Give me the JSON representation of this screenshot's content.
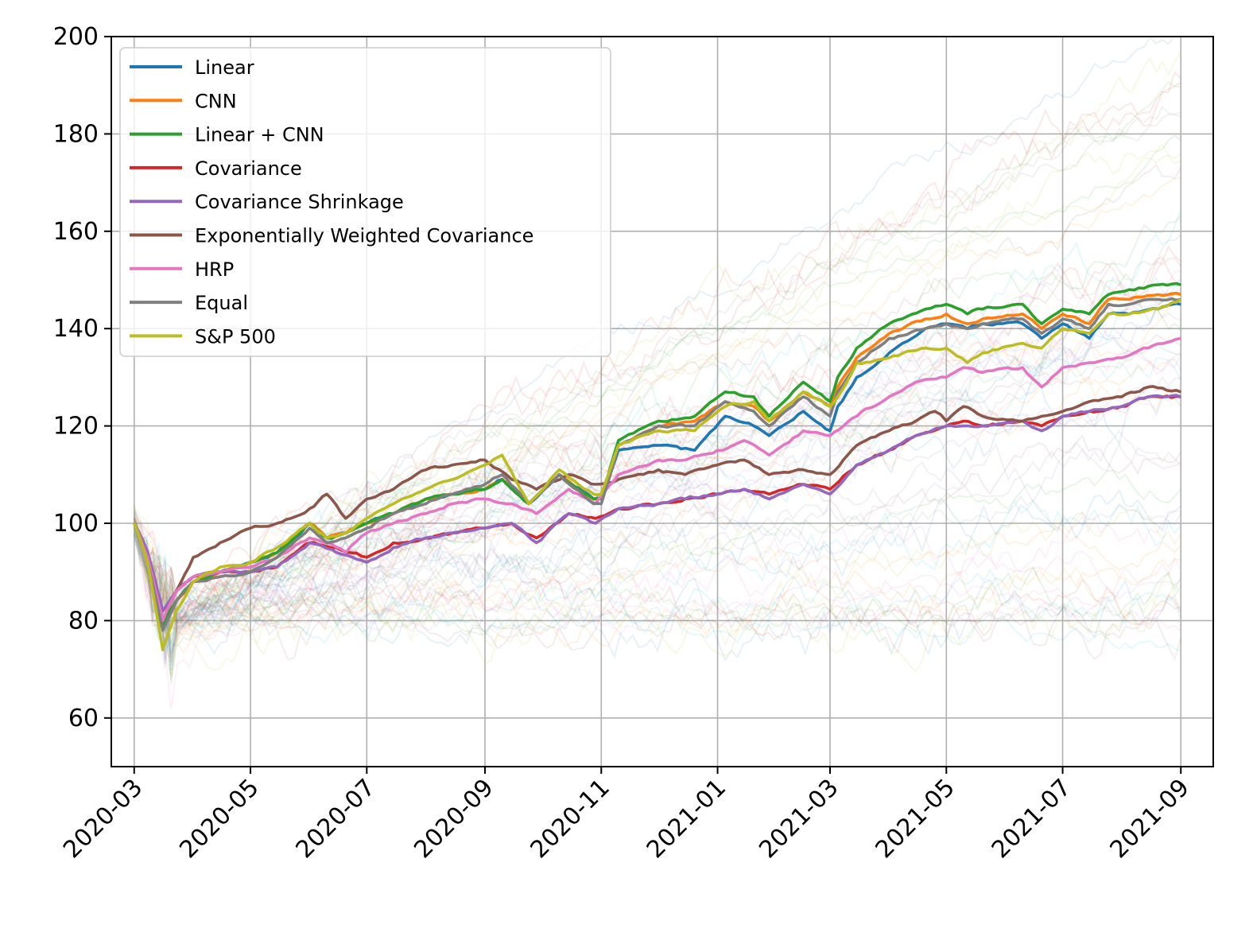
{
  "chart_data": {
    "type": "line",
    "title": "",
    "xlabel": "",
    "ylabel": "",
    "x_range": [
      "2020-02-18",
      "2021-09-18"
    ],
    "ylim": [
      50,
      200
    ],
    "grid": true,
    "legend_placement": "top-left",
    "x_ticks": [
      {
        "date": "2020-03-01",
        "label": "2020-03"
      },
      {
        "date": "2020-05-01",
        "label": "2020-05"
      },
      {
        "date": "2020-07-01",
        "label": "2020-07"
      },
      {
        "date": "2020-09-01",
        "label": "2020-09"
      },
      {
        "date": "2020-11-01",
        "label": "2020-11"
      },
      {
        "date": "2021-01-01",
        "label": "2021-01"
      },
      {
        "date": "2021-03-01",
        "label": "2021-03"
      },
      {
        "date": "2021-05-01",
        "label": "2021-05"
      },
      {
        "date": "2021-07-01",
        "label": "2021-07"
      },
      {
        "date": "2021-09-01",
        "label": "2021-09"
      }
    ],
    "y_ticks": [
      {
        "value": 60,
        "label": "60"
      },
      {
        "value": 80,
        "label": "80"
      },
      {
        "value": 100,
        "label": "100"
      },
      {
        "value": 120,
        "label": "120"
      },
      {
        "value": 140,
        "label": "140"
      },
      {
        "value": 160,
        "label": "160"
      },
      {
        "value": 180,
        "label": "180"
      },
      {
        "value": 200,
        "label": "200"
      }
    ],
    "series": [
      {
        "name": "Linear",
        "color": "#1f77b4",
        "x": [
          "2020-03-01",
          "2020-03-08",
          "2020-03-16",
          "2020-03-23",
          "2020-04-01",
          "2020-04-15",
          "2020-05-01",
          "2020-05-15",
          "2020-06-01",
          "2020-06-10",
          "2020-06-20",
          "2020-07-01",
          "2020-07-15",
          "2020-08-01",
          "2020-08-15",
          "2020-09-01",
          "2020-09-10",
          "2020-09-24",
          "2020-10-10",
          "2020-10-28",
          "2020-11-01",
          "2020-11-10",
          "2020-12-01",
          "2020-12-20",
          "2021-01-05",
          "2021-01-20",
          "2021-01-28",
          "2021-02-15",
          "2021-03-01",
          "2021-03-05",
          "2021-03-15",
          "2021-04-01",
          "2021-04-20",
          "2021-05-01",
          "2021-05-12",
          "2021-05-20",
          "2021-06-10",
          "2021-06-20",
          "2021-07-01",
          "2021-07-15",
          "2021-07-25",
          "2021-08-05",
          "2021-08-20",
          "2021-09-01"
        ],
        "values": [
          100,
          92,
          79,
          84,
          88,
          90,
          92,
          94,
          100,
          97,
          98,
          100,
          102,
          105,
          106,
          107,
          109,
          104,
          110,
          105,
          105,
          115,
          116,
          115,
          122,
          120,
          118,
          123,
          119,
          124,
          130,
          135,
          140,
          141,
          140,
          141,
          141,
          138,
          141,
          138,
          143,
          143,
          144,
          145
        ]
      },
      {
        "name": "CNN",
        "color": "#ff7f0e",
        "x": [
          "2020-03-01",
          "2020-03-08",
          "2020-03-16",
          "2020-03-23",
          "2020-04-01",
          "2020-04-15",
          "2020-05-01",
          "2020-05-15",
          "2020-06-01",
          "2020-06-10",
          "2020-06-20",
          "2020-07-01",
          "2020-07-15",
          "2020-08-01",
          "2020-08-15",
          "2020-09-01",
          "2020-09-10",
          "2020-09-24",
          "2020-10-10",
          "2020-10-28",
          "2020-11-01",
          "2020-11-10",
          "2020-12-01",
          "2020-12-20",
          "2021-01-05",
          "2021-01-20",
          "2021-01-28",
          "2021-02-15",
          "2021-03-01",
          "2021-03-05",
          "2021-03-15",
          "2021-04-01",
          "2021-04-20",
          "2021-05-01",
          "2021-05-12",
          "2021-05-20",
          "2021-06-10",
          "2021-06-20",
          "2021-07-01",
          "2021-07-15",
          "2021-07-25",
          "2021-08-05",
          "2021-08-20",
          "2021-09-01"
        ],
        "values": [
          100,
          92,
          79,
          84,
          88,
          90,
          92,
          94,
          100,
          97,
          98,
          100,
          102,
          105,
          106,
          107,
          109,
          104,
          110,
          105,
          105,
          116,
          120,
          121,
          125,
          124,
          121,
          127,
          124,
          128,
          134,
          139,
          142,
          143,
          141,
          142,
          143,
          140,
          143,
          141,
          146,
          146,
          147,
          147
        ]
      },
      {
        "name": "Linear + CNN",
        "color": "#2ca02c",
        "x": [
          "2020-03-01",
          "2020-03-08",
          "2020-03-16",
          "2020-03-23",
          "2020-04-01",
          "2020-04-15",
          "2020-05-01",
          "2020-05-15",
          "2020-06-01",
          "2020-06-10",
          "2020-06-20",
          "2020-07-01",
          "2020-07-15",
          "2020-08-01",
          "2020-08-15",
          "2020-09-01",
          "2020-09-10",
          "2020-09-24",
          "2020-10-10",
          "2020-10-28",
          "2020-11-01",
          "2020-11-10",
          "2020-12-01",
          "2020-12-20",
          "2021-01-05",
          "2021-01-20",
          "2021-01-28",
          "2021-02-15",
          "2021-03-01",
          "2021-03-05",
          "2021-03-15",
          "2021-04-01",
          "2021-04-20",
          "2021-05-01",
          "2021-05-12",
          "2021-05-20",
          "2021-06-10",
          "2021-06-20",
          "2021-07-01",
          "2021-07-15",
          "2021-07-25",
          "2021-08-05",
          "2021-08-20",
          "2021-09-01"
        ],
        "values": [
          100,
          92,
          79,
          84,
          88,
          90,
          92,
          94,
          100,
          97,
          98,
          100,
          102,
          105,
          106,
          107,
          109,
          104,
          110,
          105,
          105,
          117,
          121,
          122,
          127,
          126,
          122,
          129,
          125,
          130,
          136,
          141,
          144,
          145,
          143,
          144,
          145,
          141,
          144,
          143,
          147,
          148,
          149,
          149
        ]
      },
      {
        "name": "Covariance",
        "color": "#d62728",
        "x": [
          "2020-03-01",
          "2020-03-08",
          "2020-03-16",
          "2020-03-23",
          "2020-04-01",
          "2020-04-15",
          "2020-05-01",
          "2020-05-15",
          "2020-06-01",
          "2020-06-15",
          "2020-07-01",
          "2020-07-15",
          "2020-08-01",
          "2020-08-15",
          "2020-09-01",
          "2020-09-15",
          "2020-09-28",
          "2020-10-15",
          "2020-10-29",
          "2020-11-10",
          "2020-12-01",
          "2020-12-15",
          "2021-01-01",
          "2021-01-15",
          "2021-01-28",
          "2021-02-15",
          "2021-03-01",
          "2021-03-15",
          "2021-04-01",
          "2021-04-15",
          "2021-05-01",
          "2021-05-10",
          "2021-05-20",
          "2021-06-10",
          "2021-06-20",
          "2021-07-01",
          "2021-07-15",
          "2021-08-01",
          "2021-08-15",
          "2021-09-01"
        ],
        "values": [
          100,
          94,
          82,
          86,
          89,
          90,
          90,
          91,
          96,
          95,
          93,
          96,
          97,
          98,
          99,
          100,
          97,
          102,
          101,
          103,
          104,
          105,
          106,
          107,
          106,
          108,
          107,
          112,
          115,
          118,
          120,
          121,
          120,
          121,
          120,
          122,
          123,
          124,
          126,
          126
        ]
      },
      {
        "name": "Covariance Shrinkage",
        "color": "#9467bd",
        "x": [
          "2020-03-01",
          "2020-03-08",
          "2020-03-16",
          "2020-03-23",
          "2020-04-01",
          "2020-04-15",
          "2020-05-01",
          "2020-05-15",
          "2020-06-01",
          "2020-06-15",
          "2020-07-01",
          "2020-07-15",
          "2020-08-01",
          "2020-08-15",
          "2020-09-01",
          "2020-09-15",
          "2020-09-28",
          "2020-10-15",
          "2020-10-29",
          "2020-11-10",
          "2020-12-01",
          "2020-12-15",
          "2021-01-01",
          "2021-01-15",
          "2021-01-28",
          "2021-02-15",
          "2021-03-01",
          "2021-03-15",
          "2021-04-01",
          "2021-04-15",
          "2021-05-01",
          "2021-05-10",
          "2021-05-20",
          "2021-06-10",
          "2021-06-20",
          "2021-07-01",
          "2021-07-15",
          "2021-08-01",
          "2021-08-15",
          "2021-09-01"
        ],
        "values": [
          100,
          94,
          82,
          86,
          89,
          90,
          90,
          91,
          96,
          94,
          92,
          95,
          97,
          98,
          99,
          100,
          96,
          102,
          100,
          103,
          104,
          105,
          106,
          107,
          105,
          108,
          106,
          112,
          115,
          118,
          120,
          120,
          120,
          121,
          119,
          122,
          123,
          124,
          126,
          126
        ]
      },
      {
        "name": "Exponentially Weighted Covariance",
        "color": "#8c564b",
        "x": [
          "2020-03-01",
          "2020-03-08",
          "2020-03-16",
          "2020-03-23",
          "2020-04-01",
          "2020-04-15",
          "2020-05-01",
          "2020-05-15",
          "2020-06-01",
          "2020-06-10",
          "2020-06-20",
          "2020-07-01",
          "2020-07-15",
          "2020-08-01",
          "2020-08-15",
          "2020-09-01",
          "2020-09-15",
          "2020-09-28",
          "2020-10-15",
          "2020-10-29",
          "2020-11-10",
          "2020-12-01",
          "2020-12-15",
          "2021-01-01",
          "2021-01-15",
          "2021-01-28",
          "2021-02-15",
          "2021-03-01",
          "2021-03-15",
          "2021-04-01",
          "2021-04-15",
          "2021-04-25",
          "2021-05-01",
          "2021-05-10",
          "2021-05-20",
          "2021-06-10",
          "2021-06-20",
          "2021-07-01",
          "2021-07-15",
          "2021-08-01",
          "2021-08-15",
          "2021-09-01"
        ],
        "values": [
          100,
          93,
          80,
          86,
          93,
          96,
          99,
          100,
          103,
          106,
          101,
          105,
          107,
          111,
          112,
          113,
          109,
          107,
          110,
          108,
          109,
          111,
          110,
          112,
          113,
          110,
          111,
          110,
          116,
          119,
          121,
          123,
          121,
          124,
          122,
          121,
          122,
          123,
          125,
          126,
          128,
          127
        ]
      },
      {
        "name": "HRP",
        "color": "#e377c2",
        "x": [
          "2020-03-01",
          "2020-03-08",
          "2020-03-16",
          "2020-03-23",
          "2020-04-01",
          "2020-04-15",
          "2020-05-01",
          "2020-05-15",
          "2020-06-01",
          "2020-06-10",
          "2020-06-20",
          "2020-07-01",
          "2020-07-15",
          "2020-08-01",
          "2020-08-15",
          "2020-09-01",
          "2020-09-15",
          "2020-09-28",
          "2020-10-15",
          "2020-10-29",
          "2020-11-10",
          "2020-12-01",
          "2020-12-15",
          "2021-01-01",
          "2021-01-15",
          "2021-01-28",
          "2021-02-15",
          "2021-03-01",
          "2021-03-15",
          "2021-04-01",
          "2021-04-15",
          "2021-05-01",
          "2021-05-10",
          "2021-05-20",
          "2021-06-10",
          "2021-06-20",
          "2021-07-01",
          "2021-07-15",
          "2021-08-01",
          "2021-08-15",
          "2021-09-01"
        ],
        "values": [
          100,
          93,
          80,
          86,
          89,
          90,
          91,
          93,
          97,
          96,
          94,
          98,
          100,
          102,
          104,
          105,
          104,
          102,
          107,
          104,
          110,
          113,
          113,
          115,
          117,
          114,
          119,
          118,
          122,
          126,
          129,
          130,
          132,
          131,
          132,
          128,
          132,
          133,
          134,
          136,
          138
        ]
      },
      {
        "name": "Equal",
        "color": "#7f7f7f",
        "x": [
          "2020-03-01",
          "2020-03-08",
          "2020-03-16",
          "2020-03-23",
          "2020-04-01",
          "2020-04-15",
          "2020-05-01",
          "2020-05-15",
          "2020-06-01",
          "2020-06-10",
          "2020-06-20",
          "2020-07-01",
          "2020-07-15",
          "2020-08-01",
          "2020-08-15",
          "2020-09-01",
          "2020-09-10",
          "2020-09-24",
          "2020-10-10",
          "2020-10-28",
          "2020-11-01",
          "2020-11-10",
          "2020-12-01",
          "2020-12-20",
          "2021-01-05",
          "2021-01-20",
          "2021-01-28",
          "2021-02-15",
          "2021-03-01",
          "2021-03-05",
          "2021-03-15",
          "2021-04-01",
          "2021-04-20",
          "2021-05-01",
          "2021-05-12",
          "2021-05-20",
          "2021-06-10",
          "2021-06-20",
          "2021-07-01",
          "2021-07-15",
          "2021-07-25",
          "2021-08-05",
          "2021-08-20",
          "2021-09-01"
        ],
        "values": [
          100,
          92,
          78,
          84,
          88,
          89,
          90,
          93,
          99,
          96,
          97,
          99,
          102,
          104,
          106,
          108,
          110,
          104,
          110,
          104,
          104,
          116,
          120,
          120,
          125,
          123,
          120,
          126,
          122,
          127,
          133,
          138,
          140,
          141,
          140,
          141,
          142,
          139,
          142,
          140,
          145,
          145,
          146,
          146
        ]
      },
      {
        "name": "S&P 500",
        "color": "#bcbd22",
        "x": [
          "2020-03-01",
          "2020-03-08",
          "2020-03-16",
          "2020-03-23",
          "2020-04-01",
          "2020-04-15",
          "2020-05-01",
          "2020-05-15",
          "2020-06-01",
          "2020-06-10",
          "2020-06-20",
          "2020-07-01",
          "2020-07-15",
          "2020-08-01",
          "2020-08-15",
          "2020-09-01",
          "2020-09-10",
          "2020-09-24",
          "2020-10-10",
          "2020-10-28",
          "2020-11-01",
          "2020-11-10",
          "2020-12-01",
          "2020-12-20",
          "2021-01-05",
          "2021-01-20",
          "2021-01-28",
          "2021-02-15",
          "2021-03-01",
          "2021-03-05",
          "2021-03-15",
          "2021-04-01",
          "2021-04-20",
          "2021-05-01",
          "2021-05-12",
          "2021-05-20",
          "2021-06-10",
          "2021-06-20",
          "2021-07-01",
          "2021-07-15",
          "2021-07-25",
          "2021-08-05",
          "2021-08-20",
          "2021-09-01"
        ],
        "values": [
          100,
          92,
          74,
          82,
          88,
          91,
          92,
          95,
          100,
          97,
          98,
          101,
          104,
          107,
          109,
          112,
          114,
          104,
          111,
          106,
          106,
          116,
          119,
          119,
          124,
          125,
          121,
          127,
          124,
          126,
          133,
          134,
          136,
          136,
          133,
          135,
          137,
          136,
          140,
          139,
          143,
          143,
          144,
          146
        ]
      }
    ]
  }
}
